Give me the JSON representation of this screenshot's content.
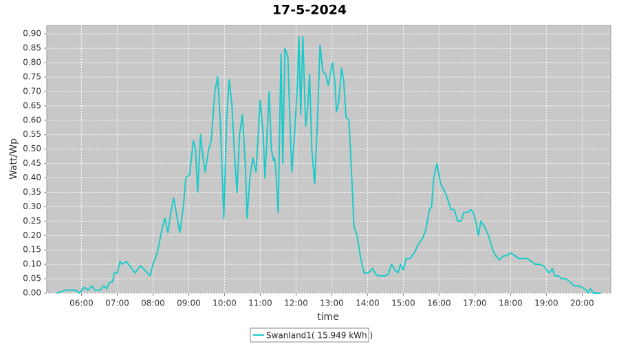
{
  "chart_data": {
    "type": "line",
    "title": "17-5-2024",
    "xlabel": "time",
    "ylabel": "Watt/Wp",
    "x": [
      5.31,
      5.56,
      5.85,
      5.94,
      6.08,
      6.19,
      6.29,
      6.38,
      6.52,
      6.62,
      6.71,
      6.77,
      6.87,
      6.92,
      7.0,
      7.08,
      7.15,
      7.25,
      7.38,
      7.5,
      7.65,
      7.77,
      7.92,
      8.0,
      8.12,
      8.25,
      8.33,
      8.42,
      8.5,
      8.58,
      8.65,
      8.75,
      8.85,
      8.92,
      9.02,
      9.13,
      9.19,
      9.25,
      9.33,
      9.4,
      9.46,
      9.56,
      9.63,
      9.73,
      9.81,
      9.88,
      9.98,
      10.06,
      10.13,
      10.21,
      10.27,
      10.35,
      10.42,
      10.5,
      10.58,
      10.63,
      10.71,
      10.79,
      10.88,
      11.0,
      11.08,
      11.13,
      11.19,
      11.25,
      11.31,
      11.37,
      11.4,
      11.44,
      11.5,
      11.58,
      11.63,
      11.69,
      11.77,
      11.83,
      11.88,
      11.96,
      12.04,
      12.08,
      12.13,
      12.19,
      12.27,
      12.33,
      12.38,
      12.44,
      12.52,
      12.6,
      12.67,
      12.75,
      12.83,
      12.9,
      12.96,
      13.02,
      13.08,
      13.13,
      13.19,
      13.27,
      13.33,
      13.4,
      13.48,
      13.54,
      13.62,
      13.71,
      13.81,
      13.9,
      14.02,
      14.15,
      14.23,
      14.29,
      14.37,
      14.48,
      14.58,
      14.67,
      14.77,
      14.85,
      14.92,
      15.0,
      15.08,
      15.19,
      15.31,
      15.42,
      15.54,
      15.63,
      15.73,
      15.79,
      15.85,
      15.94,
      16.04,
      16.13,
      16.23,
      16.33,
      16.42,
      16.52,
      16.62,
      16.69,
      16.81,
      16.88,
      16.96,
      17.04,
      17.1,
      17.17,
      17.27,
      17.38,
      17.5,
      17.58,
      17.69,
      17.81,
      17.9,
      18.0,
      18.12,
      18.23,
      18.35,
      18.46,
      18.58,
      18.69,
      18.81,
      18.92,
      19.0,
      19.08,
      19.17,
      19.23,
      19.33,
      19.42,
      19.54,
      19.65,
      19.77,
      19.88,
      20.0,
      20.12,
      20.17,
      20.23,
      20.31,
      20.46,
      20.52
    ],
    "series": [
      {
        "name": "Swanland1( 15.949 kWh )",
        "color": "#1ccaca",
        "values": [
          0,
          0.01,
          0.01,
          0,
          0.02,
          0.01,
          0.025,
          0.01,
          0.01,
          0.025,
          0.015,
          0.035,
          0.04,
          0.07,
          0.07,
          0.11,
          0.1,
          0.11,
          0.09,
          0.07,
          0.095,
          0.08,
          0.06,
          0.1,
          0.14,
          0.22,
          0.26,
          0.21,
          0.28,
          0.33,
          0.28,
          0.21,
          0.3,
          0.4,
          0.41,
          0.53,
          0.5,
          0.35,
          0.55,
          0.47,
          0.42,
          0.5,
          0.53,
          0.7,
          0.75,
          0.6,
          0.26,
          0.6,
          0.74,
          0.65,
          0.5,
          0.35,
          0.55,
          0.62,
          0.45,
          0.26,
          0.4,
          0.47,
          0.42,
          0.67,
          0.55,
          0.4,
          0.55,
          0.7,
          0.5,
          0.46,
          0.47,
          0.42,
          0.28,
          0.83,
          0.45,
          0.85,
          0.82,
          0.6,
          0.42,
          0.55,
          0.73,
          0.89,
          0.62,
          0.89,
          0.58,
          0.65,
          0.76,
          0.5,
          0.38,
          0.6,
          0.86,
          0.77,
          0.76,
          0.72,
          0.76,
          0.8,
          0.74,
          0.63,
          0.66,
          0.78,
          0.74,
          0.61,
          0.6,
          0.45,
          0.23,
          0.2,
          0.12,
          0.07,
          0.07,
          0.085,
          0.065,
          0.06,
          0.06,
          0.06,
          0.065,
          0.1,
          0.08,
          0.07,
          0.1,
          0.08,
          0.12,
          0.12,
          0.14,
          0.17,
          0.19,
          0.22,
          0.29,
          0.3,
          0.4,
          0.45,
          0.38,
          0.36,
          0.33,
          0.29,
          0.29,
          0.25,
          0.25,
          0.28,
          0.28,
          0.29,
          0.28,
          0.24,
          0.2,
          0.25,
          0.23,
          0.2,
          0.15,
          0.13,
          0.115,
          0.13,
          0.13,
          0.14,
          0.13,
          0.12,
          0.12,
          0.12,
          0.11,
          0.1,
          0.1,
          0.095,
          0.08,
          0.07,
          0.085,
          0.06,
          0.06,
          0.05,
          0.05,
          0.04,
          0.025,
          0.025,
          0.02,
          0.01,
          0,
          0.015,
          0,
          0,
          0
        ]
      }
    ],
    "xlim": [
      5.03,
      20.8
    ],
    "xticks": [
      {
        "value": 6,
        "label": "06:00"
      },
      {
        "value": 7,
        "label": "07:00"
      },
      {
        "value": 8,
        "label": "08:00"
      },
      {
        "value": 9,
        "label": "09:00"
      },
      {
        "value": 10,
        "label": "10:00"
      },
      {
        "value": 11,
        "label": "11:00"
      },
      {
        "value": 12,
        "label": "12:00"
      },
      {
        "value": 13,
        "label": "13:00"
      },
      {
        "value": 14,
        "label": "14:00"
      },
      {
        "value": 15,
        "label": "15:00"
      },
      {
        "value": 16,
        "label": "16:00"
      },
      {
        "value": 17,
        "label": "17:00"
      },
      {
        "value": 18,
        "label": "18:00"
      },
      {
        "value": 19,
        "label": "19:00"
      },
      {
        "value": 20,
        "label": "20:00"
      }
    ],
    "ylim": [
      0,
      0.929
    ],
    "yticks": [
      {
        "value": 0,
        "label": "0.00"
      },
      {
        "value": 0.05,
        "label": "0.05"
      },
      {
        "value": 0.1,
        "label": "0.10"
      },
      {
        "value": 0.15,
        "label": "0.15"
      },
      {
        "value": 0.2,
        "label": "0.20"
      },
      {
        "value": 0.25,
        "label": "0.25"
      },
      {
        "value": 0.3,
        "label": "0.30"
      },
      {
        "value": 0.35,
        "label": "0.35"
      },
      {
        "value": 0.4,
        "label": "0.40"
      },
      {
        "value": 0.45,
        "label": "0.45"
      },
      {
        "value": 0.5,
        "label": "0.50"
      },
      {
        "value": 0.55,
        "label": "0.55"
      },
      {
        "value": 0.6,
        "label": "0.60"
      },
      {
        "value": 0.65,
        "label": "0.65"
      },
      {
        "value": 0.7,
        "label": "0.70"
      },
      {
        "value": 0.75,
        "label": "0.75"
      },
      {
        "value": 0.8,
        "label": "0.80"
      },
      {
        "value": 0.85,
        "label": "0.85"
      },
      {
        "value": 0.9,
        "label": "0.90"
      }
    ],
    "grid": true,
    "legend": "bottom"
  }
}
